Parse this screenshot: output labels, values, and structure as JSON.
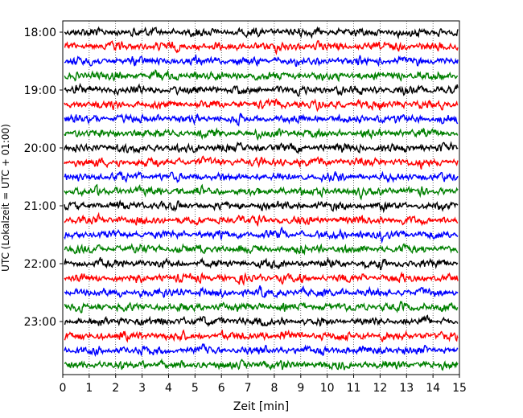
{
  "chart_data": {
    "type": "line",
    "title": "",
    "xlabel": "Zeit  [min]",
    "ylabel": "UTC (Lokalzeit = UTC + 01:00)",
    "xlim": [
      0,
      15
    ],
    "x_ticks": [
      "0",
      "1",
      "2",
      "3",
      "4",
      "5",
      "6",
      "7",
      "8",
      "9",
      "10",
      "11",
      "12",
      "13",
      "14",
      "15"
    ],
    "y_tick_labels": [
      "18:00",
      "19:00",
      "20:00",
      "21:00",
      "22:00",
      "23:00"
    ],
    "y_tick_rows": [
      0,
      4,
      8,
      12,
      16,
      20
    ],
    "vertical_grid": true,
    "grid_style": "dotted",
    "row_colors": [
      "#000000",
      "#ff0000",
      "#0000ff",
      "#008000"
    ],
    "rows_per_hour": 4,
    "row_count": 24,
    "row_start_labels": [
      "18:00",
      "18:15",
      "18:30",
      "18:45",
      "19:00",
      "19:15",
      "19:30",
      "19:45",
      "20:00",
      "20:15",
      "20:30",
      "20:45",
      "21:00",
      "21:15",
      "21:30",
      "21:45",
      "22:00",
      "22:15",
      "22:30",
      "22:45",
      "23:00",
      "23:15",
      "23:30",
      "23:45"
    ]
  }
}
